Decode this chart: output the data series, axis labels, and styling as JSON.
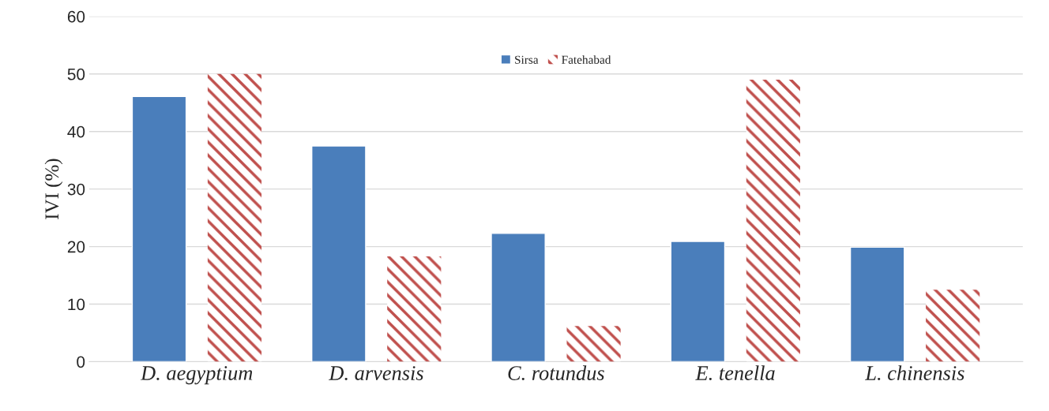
{
  "chart_data": {
    "type": "bar",
    "ylabel": "IVI (%)",
    "categories": [
      "D. aegyptium",
      "D. arvensis",
      "C. rotundus",
      "E. tenella",
      "L. chinensis"
    ],
    "series": [
      {
        "name": "Sirsa",
        "color": "#4a7ebb",
        "values": [
          46.1,
          37.5,
          22.3,
          20.9,
          19.9
        ]
      },
      {
        "name": "Fatehabad",
        "color": "#c0504d",
        "values": [
          50.0,
          18.3,
          6.2,
          49.0,
          12.5
        ]
      }
    ],
    "ylim": [
      0,
      60
    ],
    "yticks": [
      0,
      10,
      20,
      30,
      40,
      50,
      60
    ],
    "grid": "y",
    "legend": "top"
  }
}
